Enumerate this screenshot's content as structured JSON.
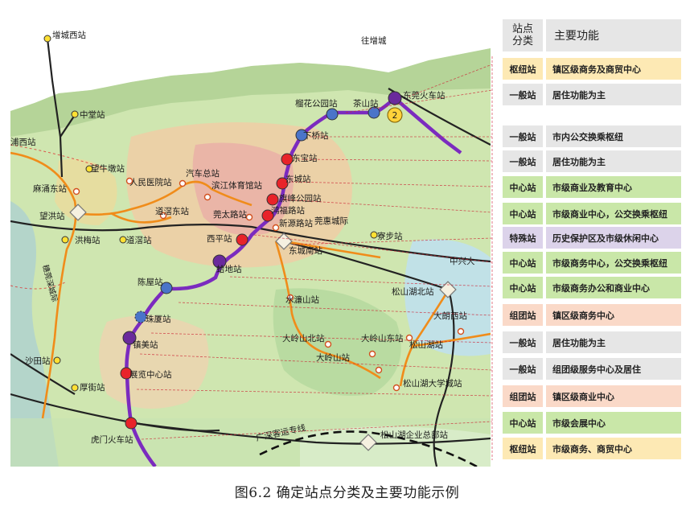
{
  "caption": "图6.2  确定站点分类及主要功能示例",
  "table": {
    "header": {
      "category": "站点\n分类",
      "function": "主要功能"
    },
    "rows": [
      {
        "category": "枢纽站",
        "function": "镇区级商务及商贸中心",
        "color": "#fde9b4"
      },
      {
        "category": "一般站",
        "function": "居住功能为主",
        "color": "#e6e6e6"
      },
      {
        "category": "一般站",
        "function": "市内公交换乘枢纽",
        "color": "#e6e6e6"
      },
      {
        "category": "一般站",
        "function": "居住功能为主",
        "color": "#e6e6e6"
      },
      {
        "category": "中心站",
        "function": "市级商业及教育中心",
        "color": "#c9e7a8"
      },
      {
        "category": "中心站",
        "function": "市级商业中心，公交换乘枢纽",
        "color": "#c9e7a8"
      },
      {
        "category": "特殊站",
        "function": "历史保护区及市级休闲中心",
        "color": "#dcd3ea"
      },
      {
        "category": "中心站",
        "function": "市级商务中心，公交换乘枢纽",
        "color": "#c9e7a8"
      },
      {
        "category": "中心站",
        "function": "市级商务办公和商业中心",
        "color": "#c9e7a8"
      },
      {
        "category": "组团站",
        "function": "镇区级商务中心",
        "color": "#fad9c8"
      },
      {
        "category": "一般站",
        "function": "居住功能为主",
        "color": "#e6e6e6"
      },
      {
        "category": "一般站",
        "function": "组团级服务中心及居住",
        "color": "#e6e6e6"
      },
      {
        "category": "组团站",
        "function": "镇区级商业中心",
        "color": "#fad9c8"
      },
      {
        "category": "中心站",
        "function": "市级会展中心",
        "color": "#c9e7a8"
      },
      {
        "category": "枢纽站",
        "function": "市级商务、商贸中心",
        "color": "#fde9b4"
      }
    ]
  },
  "map": {
    "line_number": "2",
    "stations": [
      {
        "name": "增城西站",
        "type": "yellow"
      },
      {
        "name": "往增城",
        "type": "label"
      },
      {
        "name": "中堂站",
        "type": "yellow"
      },
      {
        "name": "洪梅站",
        "type": "yellow"
      },
      {
        "name": "望牛墩站",
        "type": "yellow"
      },
      {
        "name": "道滘站",
        "type": "yellow"
      },
      {
        "name": "沙田站",
        "type": "yellow"
      },
      {
        "name": "寮步站",
        "type": "yellow"
      },
      {
        "name": "厚街站",
        "type": "yellow"
      },
      {
        "name": "麻涌东站",
        "type": "white"
      },
      {
        "name": "望洪站",
        "type": "white"
      },
      {
        "name": "人民医院站",
        "type": "white"
      },
      {
        "name": "汽车总站",
        "type": "white"
      },
      {
        "name": "道滘东站",
        "type": "white"
      },
      {
        "name": "滨江体育馆站",
        "type": "white"
      },
      {
        "name": "莞太路站",
        "type": "white"
      },
      {
        "name": "新源路站",
        "type": "white"
      },
      {
        "name": "莞惠城际",
        "type": "label"
      },
      {
        "name": "东城南站",
        "type": "white"
      },
      {
        "name": "水濂山站",
        "type": "white"
      },
      {
        "name": "大岭山北站",
        "type": "white"
      },
      {
        "name": "大岭山站",
        "type": "white"
      },
      {
        "name": "大岭山东站",
        "type": "white"
      },
      {
        "name": "松山湖站",
        "type": "white"
      },
      {
        "name": "松山湖北站",
        "type": "white"
      },
      {
        "name": "松山湖大学城站",
        "type": "white"
      },
      {
        "name": "松山湖企业总部站",
        "type": "white"
      },
      {
        "name": "大朗西站",
        "type": "white"
      },
      {
        "name": "中兴大",
        "type": "label"
      },
      {
        "name": "广深客运专线",
        "type": "label"
      },
      {
        "name": "浦西站",
        "type": "label"
      },
      {
        "name": "榴花公园站",
        "type": "blue"
      },
      {
        "name": "茶山站",
        "type": "blue"
      },
      {
        "name": "东莞火车站",
        "type": "purple"
      },
      {
        "name": "下桥站",
        "type": "blue"
      },
      {
        "name": "东宝站",
        "type": "red"
      },
      {
        "name": "东城站",
        "type": "red"
      },
      {
        "name": "旗峰公园站",
        "type": "red"
      },
      {
        "name": "鸿福路站",
        "type": "red"
      },
      {
        "name": "西平站",
        "type": "red"
      },
      {
        "name": "蛤地站",
        "type": "purple"
      },
      {
        "name": "陈屋站",
        "type": "blue"
      },
      {
        "name": "珠厦站",
        "type": "blue"
      },
      {
        "name": "镇美站",
        "type": "purple"
      },
      {
        "name": "展览中心站",
        "type": "red"
      },
      {
        "name": "虎门火车站",
        "type": "red"
      }
    ],
    "boundary_label": "穗莞深城际"
  }
}
